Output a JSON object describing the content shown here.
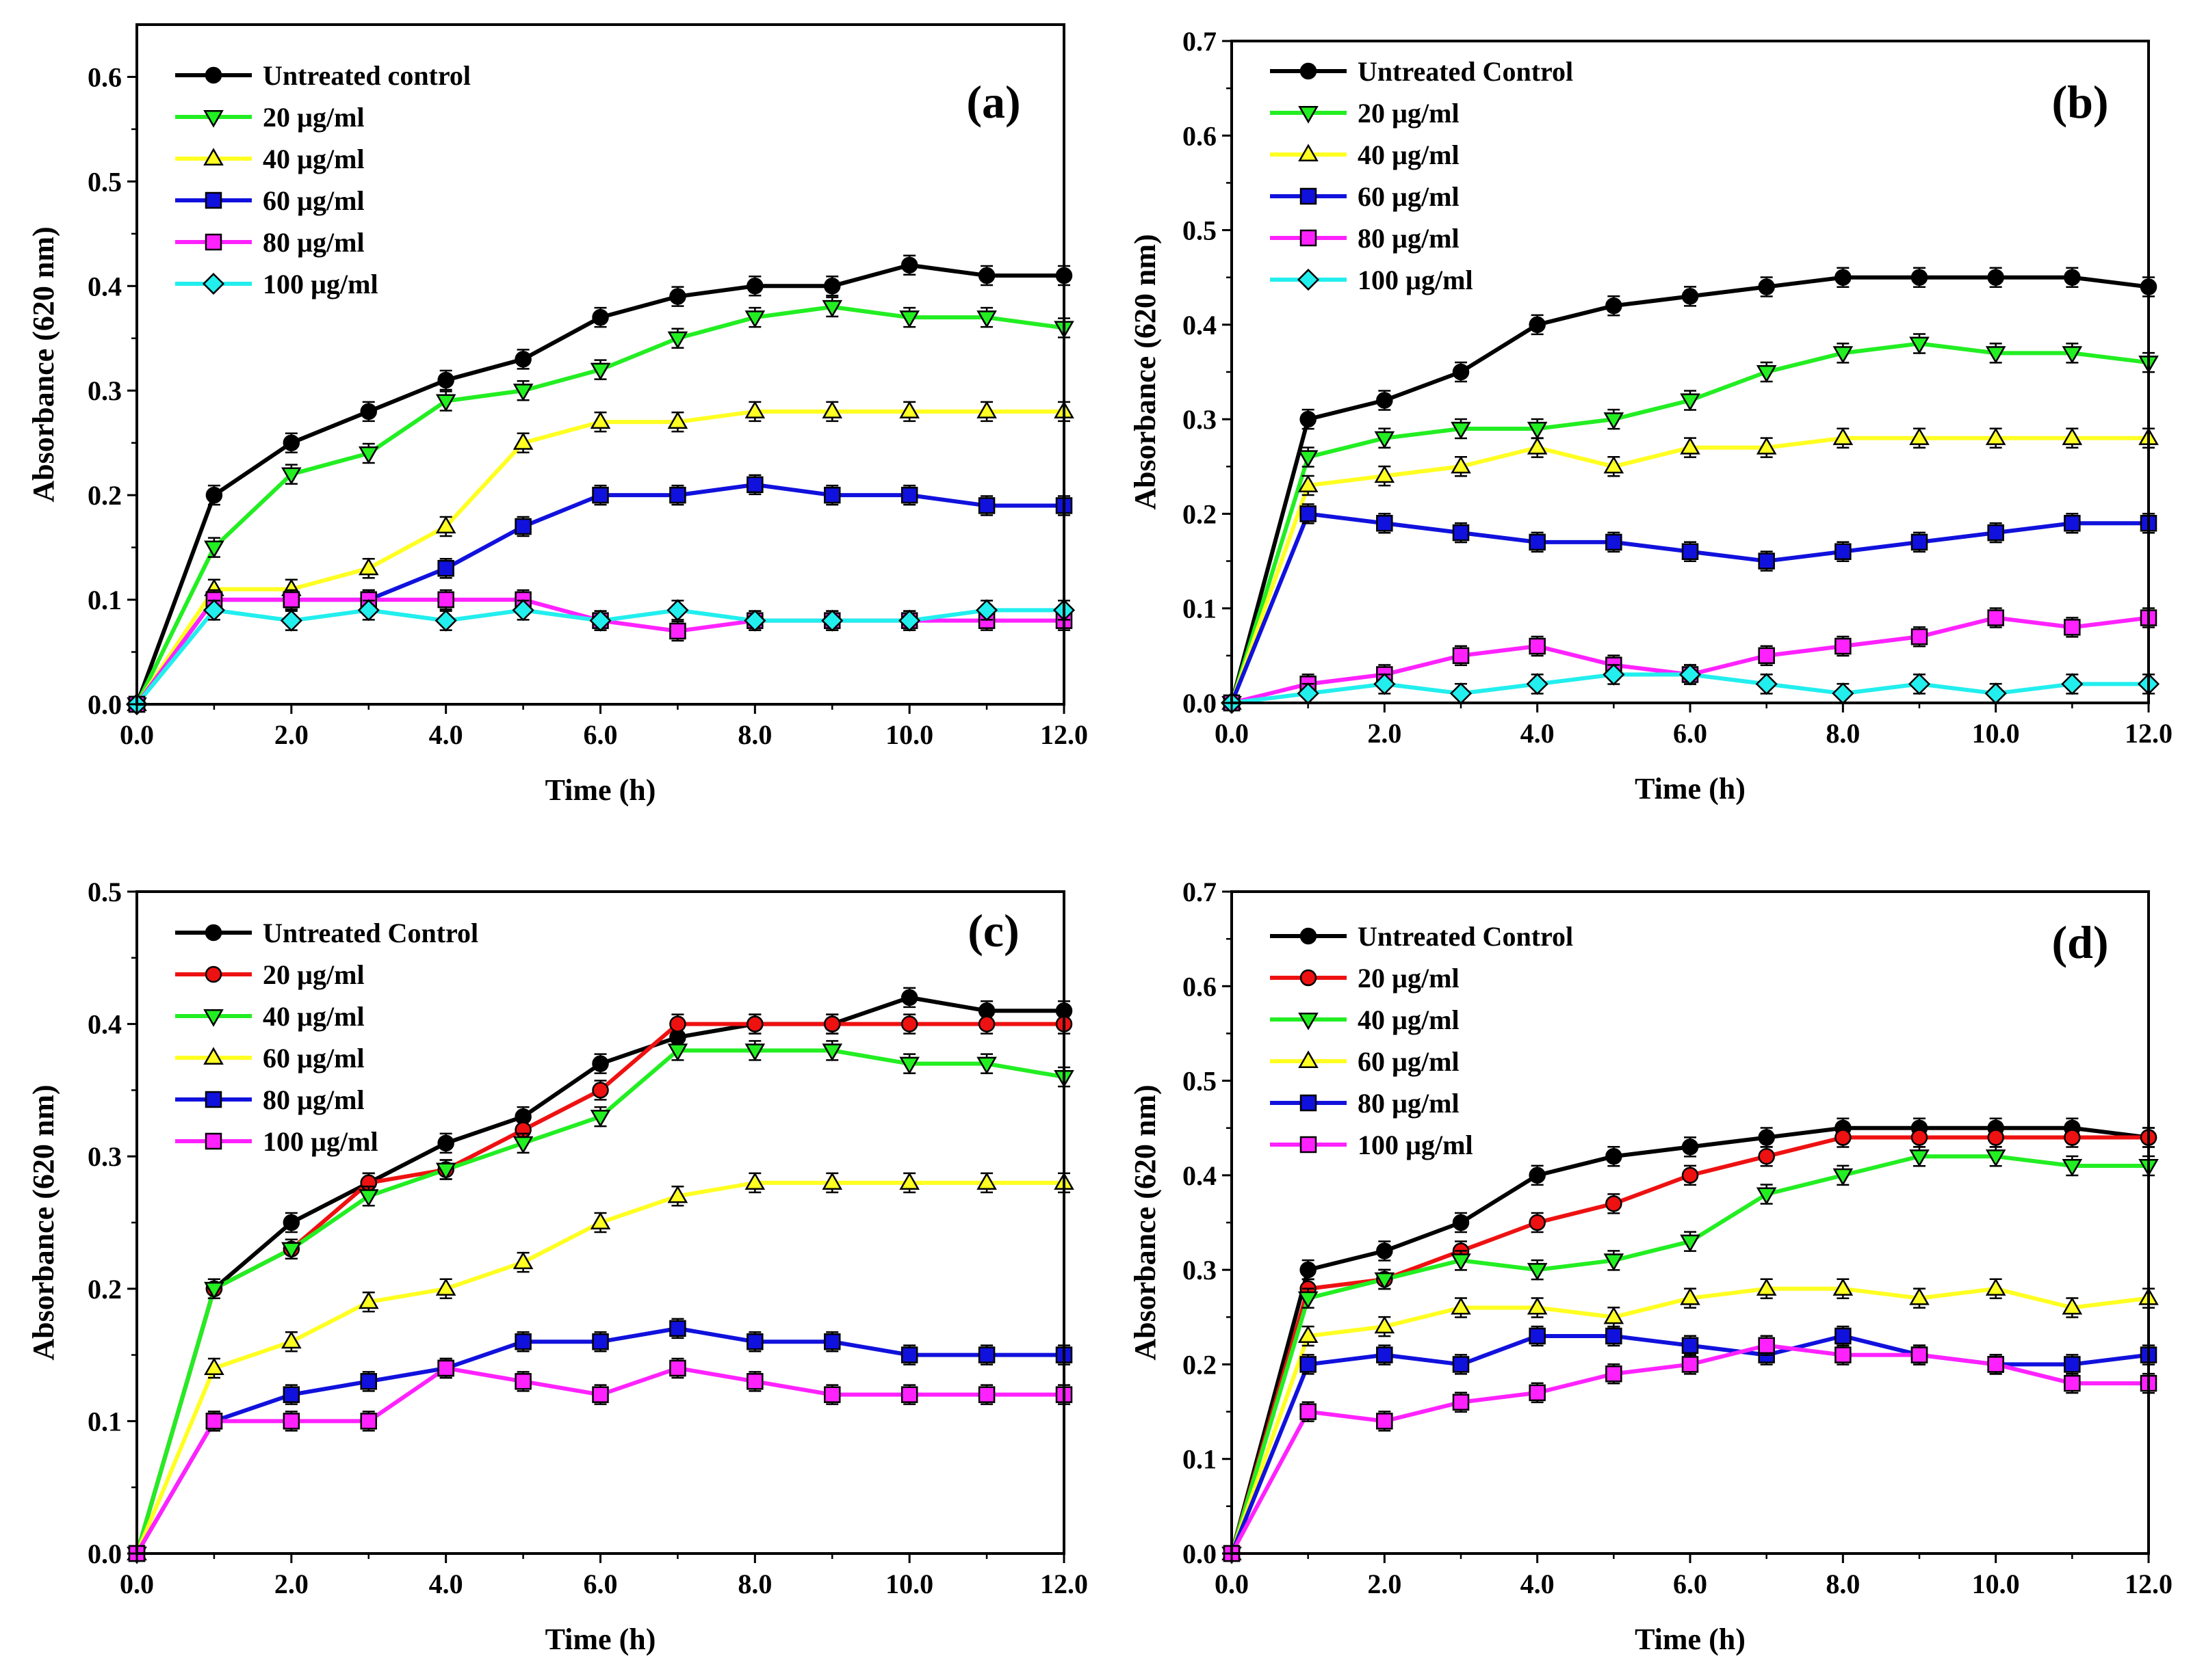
{
  "figure": {
    "name": "bacterial-growth-curves"
  },
  "colors": {
    "black": "#000000",
    "green": "#22ee22",
    "yellow": "#ffff22",
    "blue": "#1111dd",
    "magenta": "#ff22ff",
    "cyan": "#22eeee",
    "red": "#ee1111"
  },
  "chart_data": [
    {
      "panel": "a",
      "type": "line",
      "title": "(a)",
      "xlabel": "Time (h)",
      "ylabel": "Absorbance (620 nm)",
      "xlim": [
        0,
        12
      ],
      "ylim": [
        0,
        0.65
      ],
      "xticks": [
        0,
        2,
        4,
        6,
        8,
        10,
        12
      ],
      "xtick_labels": [
        "0.0",
        "2.0",
        "4.0",
        "6.0",
        "8.0",
        "10.0",
        "12.0"
      ],
      "yticks": [
        0,
        0.1,
        0.2,
        0.3,
        0.4,
        0.5,
        0.6
      ],
      "ytick_labels": [
        "0.0",
        "0.1",
        "0.2",
        "0.3",
        "0.4",
        "0.5",
        "0.6"
      ],
      "legend_position": "top-left",
      "x": [
        0,
        1,
        2,
        3,
        4,
        5,
        6,
        7,
        8,
        9,
        10,
        11,
        12
      ],
      "series": [
        {
          "name": "Untreated control",
          "color": "#000000",
          "marker": "circle",
          "values": [
            0,
            0.2,
            0.25,
            0.28,
            0.31,
            0.33,
            0.37,
            0.39,
            0.4,
            0.4,
            0.42,
            0.41,
            0.41
          ]
        },
        {
          "name": "20 µg/ml",
          "color": "#22ee22",
          "marker": "triangle-down",
          "values": [
            0,
            0.15,
            0.22,
            0.24,
            0.29,
            0.3,
            0.32,
            0.35,
            0.37,
            0.38,
            0.37,
            0.37,
            0.36
          ]
        },
        {
          "name": "40 µg/ml",
          "color": "#ffff22",
          "marker": "triangle-up",
          "values": [
            0,
            0.11,
            0.11,
            0.13,
            0.17,
            0.25,
            0.27,
            0.27,
            0.28,
            0.28,
            0.28,
            0.28,
            0.28
          ]
        },
        {
          "name": "60 µg/ml",
          "color": "#1111dd",
          "marker": "square",
          "values": [
            0,
            0.1,
            0.1,
            0.1,
            0.13,
            0.17,
            0.2,
            0.2,
            0.21,
            0.2,
            0.2,
            0.19,
            0.19
          ]
        },
        {
          "name": "80 µg/ml",
          "color": "#ff22ff",
          "marker": "square",
          "values": [
            0,
            0.1,
            0.1,
            0.1,
            0.1,
            0.1,
            0.08,
            0.07,
            0.08,
            0.08,
            0.08,
            0.08,
            0.08
          ]
        },
        {
          "name": "100 µg/ml",
          "color": "#22eeee",
          "marker": "diamond",
          "values": [
            0,
            0.09,
            0.08,
            0.09,
            0.08,
            0.09,
            0.08,
            0.09,
            0.08,
            0.08,
            0.08,
            0.09,
            0.09
          ]
        }
      ]
    },
    {
      "panel": "b",
      "type": "line",
      "title": "(b)",
      "xlabel": "Time (h)",
      "ylabel": "Absorbance (620 nm)",
      "xlim": [
        0,
        12
      ],
      "ylim": [
        0,
        0.7
      ],
      "xticks": [
        0,
        2,
        4,
        6,
        8,
        10,
        12
      ],
      "xtick_labels": [
        "0.0",
        "2.0",
        "4.0",
        "6.0",
        "8.0",
        "10.0",
        "12.0"
      ],
      "yticks": [
        0,
        0.1,
        0.2,
        0.3,
        0.4,
        0.5,
        0.6,
        0.7
      ],
      "ytick_labels": [
        "0.0",
        "0.1",
        "0.2",
        "0.3",
        "0.4",
        "0.5",
        "0.6",
        "0.7"
      ],
      "legend_position": "top-left",
      "x": [
        0,
        1,
        2,
        3,
        4,
        5,
        6,
        7,
        8,
        9,
        10,
        11,
        12
      ],
      "series": [
        {
          "name": "Untreated Control",
          "color": "#000000",
          "marker": "circle",
          "values": [
            0,
            0.3,
            0.32,
            0.35,
            0.4,
            0.42,
            0.43,
            0.44,
            0.45,
            0.45,
            0.45,
            0.45,
            0.44
          ]
        },
        {
          "name": "20 µg/ml",
          "color": "#22ee22",
          "marker": "triangle-down",
          "values": [
            0,
            0.26,
            0.28,
            0.29,
            0.29,
            0.3,
            0.32,
            0.35,
            0.37,
            0.38,
            0.37,
            0.37,
            0.36
          ]
        },
        {
          "name": "40 µg/ml",
          "color": "#ffff22",
          "marker": "triangle-up",
          "values": [
            0,
            0.23,
            0.24,
            0.25,
            0.27,
            0.25,
            0.27,
            0.27,
            0.28,
            0.28,
            0.28,
            0.28,
            0.28
          ]
        },
        {
          "name": "60 µg/ml",
          "color": "#1111dd",
          "marker": "square",
          "values": [
            0,
            0.2,
            0.19,
            0.18,
            0.17,
            0.17,
            0.16,
            0.15,
            0.16,
            0.17,
            0.18,
            0.19,
            0.19
          ]
        },
        {
          "name": "80 µg/ml",
          "color": "#ff22ff",
          "marker": "square",
          "values": [
            0,
            0.02,
            0.03,
            0.05,
            0.06,
            0.04,
            0.03,
            0.05,
            0.06,
            0.07,
            0.09,
            0.08,
            0.09
          ]
        },
        {
          "name": "100 µg/ml",
          "color": "#22eeee",
          "marker": "diamond",
          "values": [
            0,
            0.01,
            0.02,
            0.01,
            0.02,
            0.03,
            0.03,
            0.02,
            0.01,
            0.02,
            0.01,
            0.02,
            0.02
          ]
        }
      ]
    },
    {
      "panel": "c",
      "type": "line",
      "title": "(c)",
      "xlabel": "Time (h)",
      "ylabel": "Absorbance (620 nm)",
      "xlim": [
        0,
        12
      ],
      "ylim": [
        0,
        0.5
      ],
      "xticks": [
        0,
        2,
        4,
        6,
        8,
        10,
        12
      ],
      "xtick_labels": [
        "0.0",
        "2.0",
        "4.0",
        "6.0",
        "8.0",
        "10.0",
        "12.0"
      ],
      "yticks": [
        0,
        0.1,
        0.2,
        0.3,
        0.4,
        0.5
      ],
      "ytick_labels": [
        "0.0",
        "0.1",
        "0.2",
        "0.3",
        "0.4",
        "0.5"
      ],
      "legend_position": "top-left",
      "x": [
        0,
        1,
        2,
        3,
        4,
        5,
        6,
        7,
        8,
        9,
        10,
        11,
        12
      ],
      "series": [
        {
          "name": "Untreated Control",
          "color": "#000000",
          "marker": "circle",
          "values": [
            0,
            0.2,
            0.25,
            0.28,
            0.31,
            0.33,
            0.37,
            0.39,
            0.4,
            0.4,
            0.42,
            0.41,
            0.41
          ]
        },
        {
          "name": "20 µg/ml",
          "color": "#ee1111",
          "marker": "circle",
          "values": [
            0,
            0.2,
            0.23,
            0.28,
            0.29,
            0.32,
            0.35,
            0.4,
            0.4,
            0.4,
            0.4,
            0.4,
            0.4
          ]
        },
        {
          "name": "40 µg/ml",
          "color": "#22ee22",
          "marker": "triangle-down",
          "values": [
            0,
            0.2,
            0.23,
            0.27,
            0.29,
            0.31,
            0.33,
            0.38,
            0.38,
            0.38,
            0.37,
            0.37,
            0.36
          ]
        },
        {
          "name": "60 µg/ml",
          "color": "#ffff22",
          "marker": "triangle-up",
          "values": [
            0,
            0.14,
            0.16,
            0.19,
            0.2,
            0.22,
            0.25,
            0.27,
            0.28,
            0.28,
            0.28,
            0.28,
            0.28
          ]
        },
        {
          "name": "80 µg/ml",
          "color": "#1111dd",
          "marker": "square",
          "values": [
            0,
            0.1,
            0.12,
            0.13,
            0.14,
            0.16,
            0.16,
            0.17,
            0.16,
            0.16,
            0.15,
            0.15,
            0.15
          ]
        },
        {
          "name": "100 µg/ml",
          "color": "#ff22ff",
          "marker": "square",
          "values": [
            0,
            0.1,
            0.1,
            0.1,
            0.14,
            0.13,
            0.12,
            0.14,
            0.13,
            0.12,
            0.12,
            0.12,
            0.12
          ]
        }
      ]
    },
    {
      "panel": "d",
      "type": "line",
      "title": "(d)",
      "xlabel": "Time (h)",
      "ylabel": "Absorbance (620 nm)",
      "xlim": [
        0,
        12
      ],
      "ylim": [
        0,
        0.7
      ],
      "xticks": [
        0,
        2,
        4,
        6,
        8,
        10,
        12
      ],
      "xtick_labels": [
        "0.0",
        "2.0",
        "4.0",
        "6.0",
        "8.0",
        "10.0",
        "12.0"
      ],
      "yticks": [
        0,
        0.1,
        0.2,
        0.3,
        0.4,
        0.5,
        0.6,
        0.7
      ],
      "ytick_labels": [
        "0.0",
        "0.1",
        "0.2",
        "0.3",
        "0.4",
        "0.5",
        "0.6",
        "0.7"
      ],
      "legend_position": "top-left",
      "x": [
        0,
        1,
        2,
        3,
        4,
        5,
        6,
        7,
        8,
        9,
        10,
        11,
        12
      ],
      "series": [
        {
          "name": "Untreated Control",
          "color": "#000000",
          "marker": "circle",
          "values": [
            0,
            0.3,
            0.32,
            0.35,
            0.4,
            0.42,
            0.43,
            0.44,
            0.45,
            0.45,
            0.45,
            0.45,
            0.44
          ]
        },
        {
          "name": "20 µg/ml",
          "color": "#ee1111",
          "marker": "circle",
          "values": [
            0,
            0.28,
            0.29,
            0.32,
            0.35,
            0.37,
            0.4,
            0.42,
            0.44,
            0.44,
            0.44,
            0.44,
            0.44
          ]
        },
        {
          "name": "40 µg/ml",
          "color": "#22ee22",
          "marker": "triangle-down",
          "values": [
            0,
            0.27,
            0.29,
            0.31,
            0.3,
            0.31,
            0.33,
            0.38,
            0.4,
            0.42,
            0.42,
            0.41,
            0.41
          ]
        },
        {
          "name": "60 µg/ml",
          "color": "#ffff22",
          "marker": "triangle-up",
          "values": [
            0,
            0.23,
            0.24,
            0.26,
            0.26,
            0.25,
            0.27,
            0.28,
            0.28,
            0.27,
            0.28,
            0.26,
            0.27
          ]
        },
        {
          "name": "80 µg/ml",
          "color": "#1111dd",
          "marker": "square",
          "values": [
            0,
            0.2,
            0.21,
            0.2,
            0.23,
            0.23,
            0.22,
            0.21,
            0.23,
            0.21,
            0.2,
            0.2,
            0.21
          ]
        },
        {
          "name": "100 µg/ml",
          "color": "#ff22ff",
          "marker": "square",
          "values": [
            0,
            0.15,
            0.14,
            0.16,
            0.17,
            0.19,
            0.2,
            0.22,
            0.21,
            0.21,
            0.2,
            0.18,
            0.18
          ]
        }
      ]
    }
  ]
}
